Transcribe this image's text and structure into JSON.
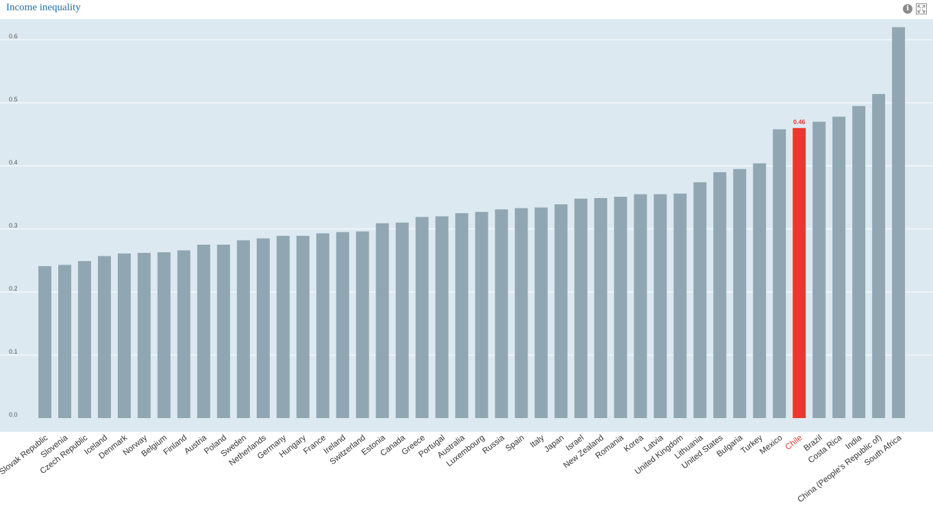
{
  "header": {
    "title": "Income inequality"
  },
  "icons": {
    "info": "info-icon",
    "expand": "expand-icon"
  },
  "colors": {
    "bar": "#90a7b3",
    "highlight": "#e8392e",
    "plot_bg": "#dde9f0",
    "title": "#1f6fa8"
  },
  "chart_data": {
    "type": "bar",
    "title": "Income inequality",
    "xlabel": "",
    "ylabel": "",
    "ylim": [
      0,
      0.6
    ],
    "yticks": [
      "0.0",
      "0.1",
      "0.2",
      "0.3",
      "0.4",
      "0.5",
      "0.6"
    ],
    "grid": true,
    "highlight": "Chile",
    "highlight_label": "0.46",
    "categories": [
      "Slovak Republic",
      "Slovenia",
      "Czech Republic",
      "Iceland",
      "Denmark",
      "Norway",
      "Belgium",
      "Finland",
      "Austria",
      "Poland",
      "Sweden",
      "Netherlands",
      "Germany",
      "Hungary",
      "France",
      "Ireland",
      "Switzerland",
      "Estonia",
      "Canada",
      "Greece",
      "Portugal",
      "Australia",
      "Luxembourg",
      "Russia",
      "Spain",
      "Italy",
      "Japan",
      "Israel",
      "New Zealand",
      "Romania",
      "Korea",
      "Latvia",
      "United Kingdom",
      "Lithuania",
      "United States",
      "Bulgaria",
      "Turkey",
      "Mexico",
      "Chile",
      "Brazil",
      "Costa Rica",
      "India",
      "China (People's Republic of)",
      "South Africa"
    ],
    "values": [
      0.241,
      0.243,
      0.249,
      0.257,
      0.261,
      0.262,
      0.263,
      0.266,
      0.275,
      0.275,
      0.282,
      0.285,
      0.289,
      0.289,
      0.293,
      0.295,
      0.296,
      0.309,
      0.31,
      0.319,
      0.32,
      0.325,
      0.327,
      0.331,
      0.333,
      0.334,
      0.339,
      0.348,
      0.349,
      0.351,
      0.355,
      0.355,
      0.356,
      0.374,
      0.39,
      0.395,
      0.404,
      0.458,
      0.46,
      0.47,
      0.478,
      0.495,
      0.514,
      0.62
    ]
  }
}
